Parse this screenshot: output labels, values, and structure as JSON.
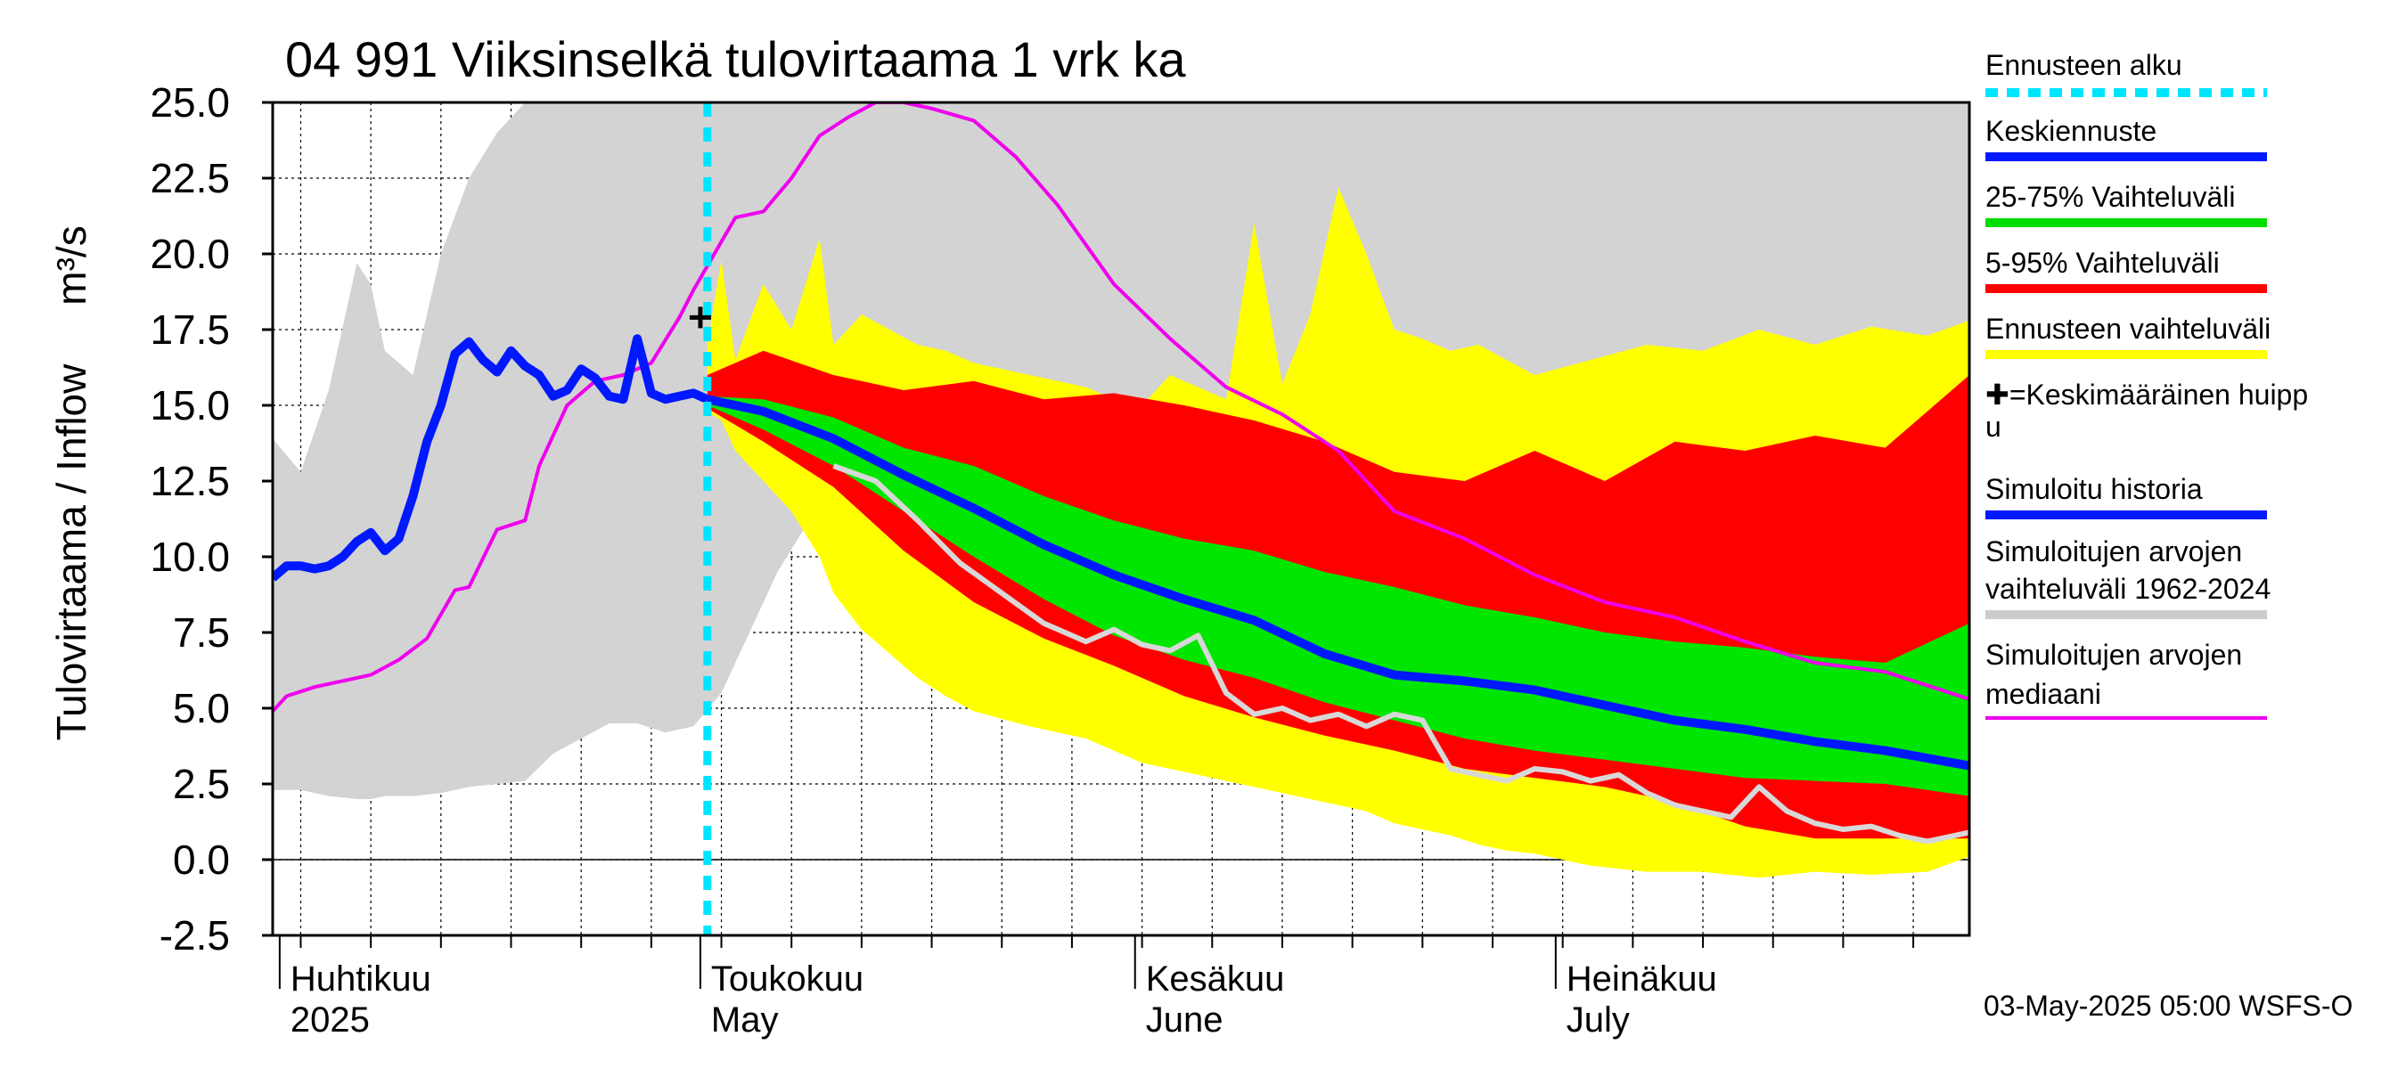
{
  "chart_data": {
    "type": "area",
    "title": "04 991 Viiksinselkä tulovirtaama 1 vrk ka",
    "ylabel_left": "Tulovirtaama / Inflow",
    "ylabel_right": "m³/s",
    "ylim": [
      -2.5,
      25.0
    ],
    "yticks": [
      "25.0",
      "22.5",
      "20.0",
      "17.5",
      "15.0",
      "12.5",
      "10.0",
      "7.5",
      "5.0",
      "2.5",
      "0.0",
      "-2.5"
    ],
    "x_range_days": [
      0,
      121
    ],
    "forecast_start_day": 31,
    "months": [
      {
        "fi": "Huhtikuu",
        "en": "2025",
        "day": 0
      },
      {
        "fi": "Toukokuu",
        "en": "May",
        "day": 30
      },
      {
        "fi": "Kesäkuu",
        "en": "June",
        "day": 61
      },
      {
        "fi": "Heinäkuu",
        "en": "July",
        "day": 91
      }
    ],
    "mean_peak": {
      "day": 30.5,
      "value": 17.9
    },
    "simulated_history": {
      "days": [
        0,
        1,
        2,
        3,
        4,
        5,
        6,
        7,
        8,
        9,
        10,
        11,
        12,
        13,
        14,
        15,
        16,
        17,
        18,
        19,
        20,
        21,
        22,
        23,
        24,
        25,
        26,
        27,
        28,
        29,
        30,
        31
      ],
      "values": [
        9.3,
        9.7,
        9.7,
        9.6,
        9.7,
        10.0,
        10.5,
        10.8,
        10.2,
        10.6,
        12.0,
        13.8,
        15.0,
        16.7,
        17.1,
        16.5,
        16.1,
        16.8,
        16.3,
        16.0,
        15.3,
        15.5,
        16.2,
        15.9,
        15.3,
        15.2,
        17.2,
        15.4,
        15.2,
        15.3,
        15.4,
        15.2
      ]
    },
    "median_forecast": {
      "days": [
        31,
        35,
        40,
        45,
        50,
        55,
        60,
        65,
        70,
        75,
        80,
        85,
        90,
        95,
        100,
        105,
        110,
        115,
        121
      ],
      "values": [
        15.2,
        14.8,
        13.9,
        12.7,
        11.6,
        10.4,
        9.4,
        8.6,
        7.9,
        6.8,
        6.1,
        5.9,
        5.6,
        5.1,
        4.6,
        4.3,
        3.9,
        3.6,
        3.1
      ]
    },
    "p25_75": {
      "days": [
        31,
        35,
        40,
        45,
        50,
        55,
        60,
        65,
        70,
        75,
        80,
        85,
        90,
        95,
        100,
        105,
        110,
        115,
        121
      ],
      "upper": [
        15.3,
        15.2,
        14.6,
        13.6,
        13.0,
        12.0,
        11.2,
        10.6,
        10.2,
        9.5,
        9.0,
        8.4,
        8.0,
        7.5,
        7.2,
        7.0,
        6.7,
        6.5,
        7.8
      ],
      "lower": [
        15.0,
        14.2,
        13.0,
        11.5,
        10.0,
        8.6,
        7.4,
        6.6,
        6.0,
        5.2,
        4.6,
        4.0,
        3.6,
        3.3,
        3.0,
        2.7,
        2.6,
        2.5,
        2.1
      ]
    },
    "p5_95": {
      "days": [
        31,
        35,
        40,
        45,
        50,
        55,
        60,
        65,
        70,
        75,
        80,
        85,
        90,
        95,
        100,
        105,
        110,
        115,
        121
      ],
      "upper": [
        16.0,
        16.8,
        16.0,
        15.5,
        15.8,
        15.2,
        15.4,
        15.0,
        14.5,
        13.8,
        12.8,
        12.5,
        13.5,
        12.5,
        13.8,
        13.5,
        14.0,
        13.6,
        16.0
      ],
      "lower": [
        14.9,
        13.8,
        12.3,
        10.2,
        8.5,
        7.3,
        6.4,
        5.4,
        4.7,
        4.1,
        3.6,
        3.0,
        2.7,
        2.4,
        1.9,
        1.1,
        0.7,
        0.7,
        0.7
      ]
    },
    "forecast_range": {
      "days": [
        31,
        32,
        33,
        35,
        37,
        39,
        40,
        42,
        44,
        46,
        48,
        50,
        54,
        58,
        60,
        62,
        64,
        66,
        68,
        70,
        72,
        74,
        76,
        78,
        80,
        82,
        84,
        86,
        88,
        90,
        94,
        98,
        102,
        106,
        110,
        114,
        118,
        121
      ],
      "upper": [
        17.0,
        19.8,
        16.5,
        19.0,
        17.5,
        20.5,
        17.0,
        18.0,
        17.5,
        17.0,
        16.8,
        16.4,
        16.0,
        15.6,
        15.2,
        15.0,
        16.0,
        15.6,
        15.2,
        21.0,
        15.7,
        18.0,
        22.2,
        20.0,
        17.5,
        17.2,
        16.8,
        17.0,
        16.5,
        16.0,
        16.5,
        17.0,
        16.8,
        17.5,
        17.0,
        17.6,
        17.3,
        17.8
      ],
      "lower": [
        14.8,
        14.5,
        13.5,
        12.5,
        11.5,
        10.0,
        8.8,
        7.6,
        6.8,
        6.0,
        5.4,
        4.9,
        4.4,
        4.0,
        3.6,
        3.2,
        3.0,
        2.8,
        2.6,
        2.4,
        2.2,
        2.0,
        1.8,
        1.6,
        1.2,
        1.0,
        0.8,
        0.5,
        0.3,
        0.2,
        -0.2,
        -0.4,
        -0.4,
        -0.6,
        -0.4,
        -0.5,
        -0.4,
        0.1
      ]
    },
    "historical_range": {
      "days": [
        0,
        2,
        4,
        6,
        7,
        8,
        10,
        12,
        14,
        16,
        18,
        20,
        22,
        24,
        26,
        28,
        30,
        32,
        34,
        36,
        38,
        40,
        45,
        50,
        55,
        60,
        65,
        70,
        75,
        80,
        85,
        90,
        95,
        100,
        105,
        110,
        115,
        118,
        120,
        121
      ],
      "upper": [
        13.9,
        12.8,
        15.5,
        19.7,
        19.0,
        16.8,
        16.0,
        20.0,
        22.5,
        24.0,
        25.0,
        25.0,
        25.0,
        25.0,
        25.0,
        25.0,
        25.0,
        25.0,
        25.0,
        25.0,
        25.0,
        25.0,
        25.0,
        25.0,
        25.0,
        25.0,
        25.0,
        25.0,
        25.0,
        25.0,
        25.0,
        25.0,
        25.0,
        25.0,
        25.0,
        25.0,
        25.0,
        25.0,
        25.0,
        25.0
      ],
      "lower": [
        2.3,
        2.3,
        2.1,
        2.0,
        2.0,
        2.1,
        2.1,
        2.2,
        2.4,
        2.5,
        2.6,
        3.5,
        4.0,
        4.5,
        4.5,
        4.2,
        4.4,
        5.5,
        7.5,
        9.5,
        11.0,
        12.2,
        12.5,
        11.5,
        10.5,
        9.5,
        8.6,
        7.6,
        6.8,
        6.0,
        5.4,
        4.6,
        3.6,
        2.6,
        1.8,
        1.2,
        0.8,
        0.6,
        0.4,
        0.4
      ]
    },
    "historical_median": {
      "days": [
        0,
        1,
        3,
        5,
        7,
        9,
        11,
        13,
        14,
        16,
        18,
        19,
        21,
        23,
        25,
        27,
        29,
        30,
        31,
        32,
        33,
        35,
        37,
        39,
        41,
        43,
        45,
        47,
        50,
        53,
        56,
        60,
        64,
        68,
        72,
        76,
        80,
        85,
        90,
        95,
        100,
        105,
        110,
        115,
        121
      ],
      "values": [
        4.9,
        5.4,
        5.7,
        5.9,
        6.1,
        6.6,
        7.3,
        8.9,
        9.0,
        10.9,
        11.2,
        13.0,
        15.0,
        15.8,
        16.0,
        16.4,
        17.9,
        18.8,
        19.6,
        20.4,
        21.2,
        21.4,
        22.5,
        23.9,
        24.5,
        25.0,
        25.0,
        24.8,
        24.4,
        23.2,
        21.6,
        19.0,
        17.2,
        15.6,
        14.7,
        13.5,
        11.5,
        10.6,
        9.4,
        8.5,
        8.0,
        7.2,
        6.5,
        6.2,
        5.3
      ]
    },
    "simulated_median_actual": {
      "days": [
        40,
        43,
        46,
        49,
        52,
        55,
        58,
        60,
        62,
        64,
        66,
        68,
        70,
        72,
        74,
        76,
        78,
        80,
        82,
        84,
        86,
        88,
        90,
        92,
        94,
        96,
        98,
        100,
        102,
        104,
        106,
        108,
        110,
        112,
        114,
        116,
        118,
        121
      ],
      "values": [
        13.0,
        12.5,
        11.2,
        9.8,
        8.8,
        7.8,
        7.2,
        7.6,
        7.1,
        6.9,
        7.4,
        5.5,
        4.8,
        5.0,
        4.6,
        4.8,
        4.4,
        4.8,
        4.6,
        3.0,
        2.8,
        2.6,
        3.0,
        2.9,
        2.6,
        2.8,
        2.2,
        1.8,
        1.6,
        1.4,
        2.4,
        1.6,
        1.2,
        1.0,
        1.1,
        0.8,
        0.6,
        0.9
      ]
    },
    "legend": [
      {
        "label": "Ennusteen alku",
        "color": "#00e5ff",
        "style": "dashed"
      },
      {
        "label": "Keskiennuste",
        "color": "#0018ff",
        "style": "line"
      },
      {
        "label": "25-75% Vaihteluväli",
        "color": "#00dd00",
        "style": "line"
      },
      {
        "label": "5-95% Vaihteluväli",
        "color": "#ff0000",
        "style": "line"
      },
      {
        "label": "Ennusteen vaihteluväli",
        "color": "#ffff00",
        "style": "line"
      },
      {
        "label": "✚=Keskimääräinen huippu",
        "color": "#000000",
        "style": "text"
      },
      {
        "label": "Simuloitu historia",
        "color": "#0018ff",
        "style": "line"
      },
      {
        "label": "Simuloitujen arvojen vaihteluväli 1962-2024",
        "color": "#cccccc",
        "style": "line"
      },
      {
        "label": "Simuloitujen arvojen mediaani",
        "color": "#ee00ee",
        "style": "line"
      }
    ],
    "footer": "03-May-2025 05:00 WSFS-O"
  }
}
